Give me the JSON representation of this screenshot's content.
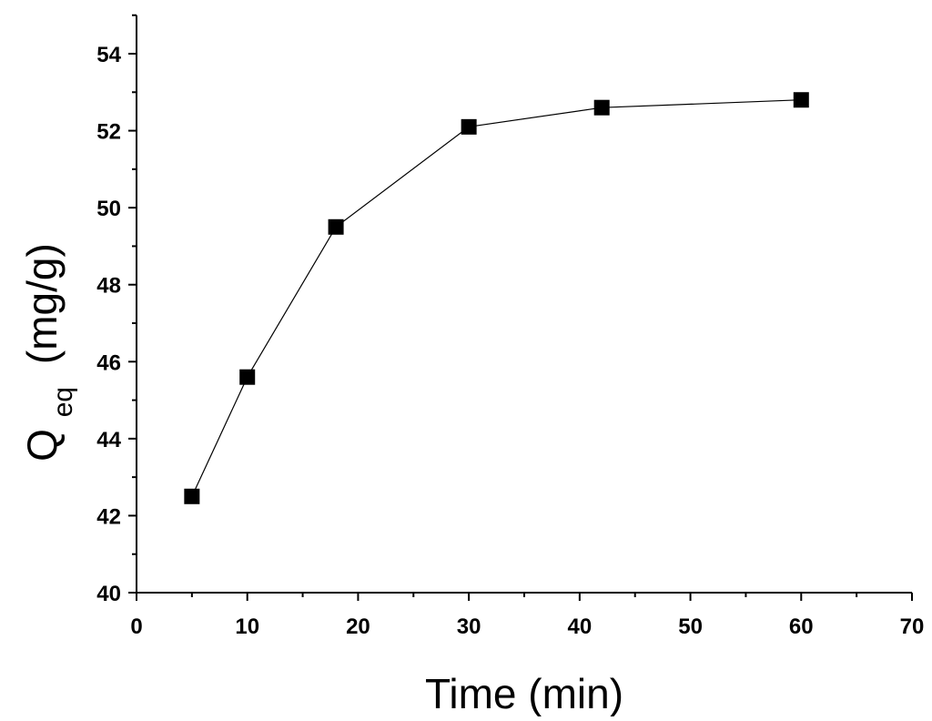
{
  "chart_data": {
    "type": "line",
    "title": "",
    "xlabel": "Time (min)",
    "ylabel": {
      "symbol": "Q",
      "subscript": "eq",
      "unit": "(mg/g)"
    },
    "xlim": [
      0,
      70
    ],
    "ylim": [
      40,
      55
    ],
    "x_ticks": [
      0,
      10,
      20,
      30,
      40,
      50,
      60,
      70
    ],
    "x_minor_step": 5,
    "y_ticks": [
      40,
      42,
      44,
      46,
      48,
      50,
      52,
      54
    ],
    "y_minor_step": 1,
    "grid": false,
    "legend": "none",
    "marker": "square",
    "line_color": "#000000",
    "marker_color": "#000000",
    "series": [
      {
        "x": [
          5,
          10,
          18,
          30,
          42,
          60
        ],
        "y": [
          42.5,
          45.6,
          49.5,
          52.1,
          52.6,
          52.8
        ]
      }
    ]
  }
}
